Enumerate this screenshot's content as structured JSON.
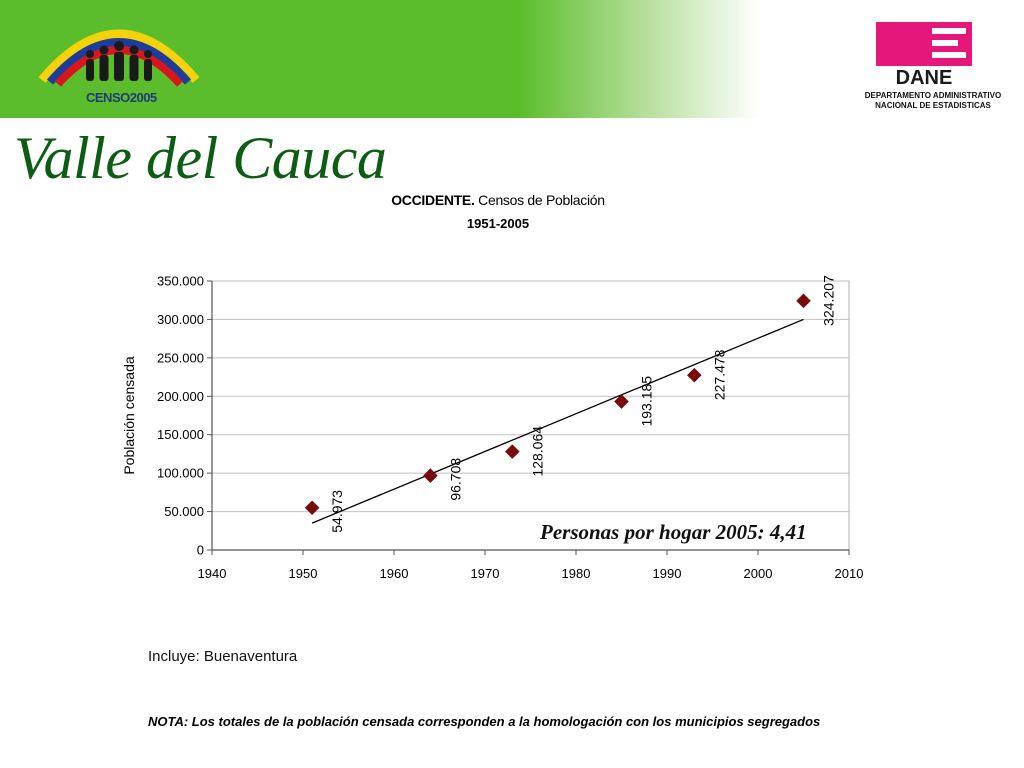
{
  "header": {
    "logo_text": "CENSO2005",
    "dane_logo_text": "DANE",
    "dane_caption_line1": "DEPARTAMENTO ADMINISTRATIVO",
    "dane_caption_line2": "NACIONAL DE ESTADISTICAS",
    "brand_green": "#5cbd2c",
    "dane_pink": "#e6177a"
  },
  "page": {
    "title": "Valle del Cauca",
    "title_color": "#0d5c14"
  },
  "chart_data": {
    "type": "scatter",
    "title_bold": "OCCIDENTE.",
    "title_rest": " Censos de Población",
    "subtitle": "1951-2005",
    "xlabel": "",
    "ylabel": "Población censada",
    "xlim": [
      1940,
      2010
    ],
    "ylim": [
      0,
      350000
    ],
    "x_ticks": [
      "1940",
      "1950",
      "1960",
      "1970",
      "1980",
      "1990",
      "2000",
      "2010"
    ],
    "y_ticks": [
      "0",
      "50.000",
      "100.000",
      "150.000",
      "200.000",
      "250.000",
      "300.000",
      "350.000"
    ],
    "grid": true,
    "marker": "diamond",
    "marker_color": "#7a0a0a",
    "points": [
      {
        "x": 1951,
        "y": 54973,
        "label": "54.973"
      },
      {
        "x": 1964,
        "y": 96708,
        "label": "96.708"
      },
      {
        "x": 1973,
        "y": 128064,
        "label": "128.064"
      },
      {
        "x": 1985,
        "y": 193185,
        "label": "193.185"
      },
      {
        "x": 1993,
        "y": 227478,
        "label": "227.478"
      },
      {
        "x": 2005,
        "y": 324207,
        "label": "324.207"
      }
    ],
    "trendline": {
      "x": [
        1951,
        2005
      ],
      "y": [
        35000,
        300000
      ]
    },
    "annotation": "Personas por hogar 2005: 4,41"
  },
  "notes": {
    "incluye": "Incluye: Buenaventura",
    "nota": "NOTA: Los totales de la población censada corresponden a la homologación con los municipios segregados"
  }
}
